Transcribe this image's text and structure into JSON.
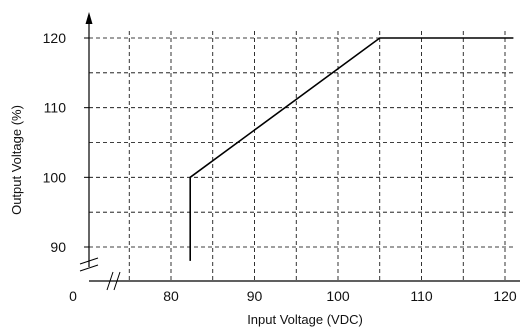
{
  "chart_data": {
    "type": "line",
    "title": "",
    "xlabel": "Input Voltage (VDC)",
    "ylabel": "Output Voltage (%)",
    "x_ticks": [
      80,
      90,
      100,
      110,
      120
    ],
    "y_ticks": [
      90,
      100,
      110,
      120
    ],
    "x_zero_label": "0",
    "xlim": [
      75,
      121
    ],
    "ylim": [
      87,
      124
    ],
    "grid": true,
    "grid_style": "dashed",
    "x_axis_break": true,
    "y_axis_break": true,
    "series": [
      {
        "x": [
          82.3,
          82.3,
          105,
          121
        ],
        "y": [
          88,
          100,
          120,
          120
        ]
      }
    ]
  }
}
